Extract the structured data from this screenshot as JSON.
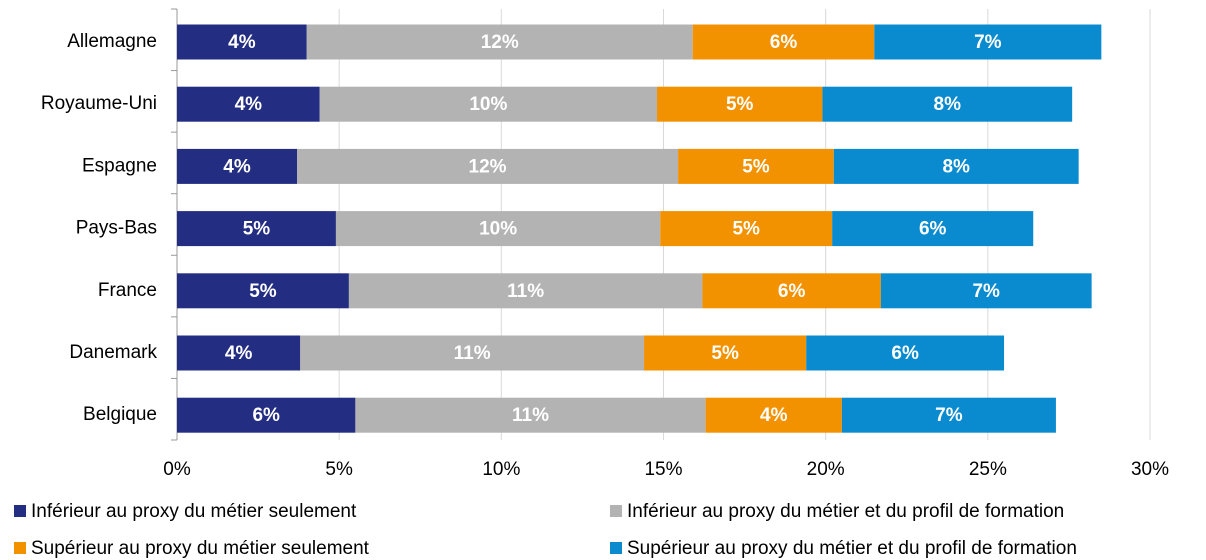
{
  "chart_data": {
    "type": "stacked_bar_horizontal",
    "categories": [
      "Allemagne",
      "Royaume-Uni",
      "Espagne",
      "Pays-Bas",
      "France",
      "Danemark",
      "Belgique"
    ],
    "series": [
      {
        "name": "Inférieur au proxy du métier seulement",
        "color": "#232d82",
        "values": [
          4.0,
          4.4,
          3.7,
          4.9,
          5.3,
          3.8,
          5.5
        ],
        "value_labels": [
          "4%",
          "4%",
          "4%",
          "5%",
          "5%",
          "4%",
          "6%"
        ]
      },
      {
        "name": "Inférieur au proxy du métier et du profil de formation",
        "color": "#b3b3b3",
        "values": [
          11.9,
          10.4,
          11.75,
          10.0,
          10.9,
          10.6,
          10.8
        ],
        "value_labels": [
          "12%",
          "10%",
          "12%",
          "10%",
          "11%",
          "11%",
          "11%"
        ]
      },
      {
        "name": "Supérieur au proxy du métier seulement",
        "color": "#f39200",
        "values": [
          5.6,
          5.1,
          4.8,
          5.3,
          5.5,
          5.0,
          4.2
        ],
        "value_labels": [
          "6%",
          "5%",
          "5%",
          "5%",
          "6%",
          "5%",
          "4%"
        ]
      },
      {
        "name": "Supérieur au proxy du métier et du profil de formation",
        "color": "#0a8bd0",
        "values": [
          7.0,
          7.7,
          7.55,
          6.2,
          6.5,
          6.1,
          6.6
        ],
        "value_labels": [
          "7%",
          "8%",
          "8%",
          "6%",
          "7%",
          "6%",
          "7%"
        ]
      }
    ],
    "xlim": [
      0,
      30
    ],
    "xticks": [
      {
        "value": 0,
        "label": "0%"
      },
      {
        "value": 5,
        "label": "5%"
      },
      {
        "value": 10,
        "label": "10%"
      },
      {
        "value": 15,
        "label": "15%"
      },
      {
        "value": 20,
        "label": "20%"
      },
      {
        "value": 25,
        "label": "25%"
      },
      {
        "value": 30,
        "label": "30%"
      }
    ],
    "grid": true,
    "legend": "bottom"
  }
}
